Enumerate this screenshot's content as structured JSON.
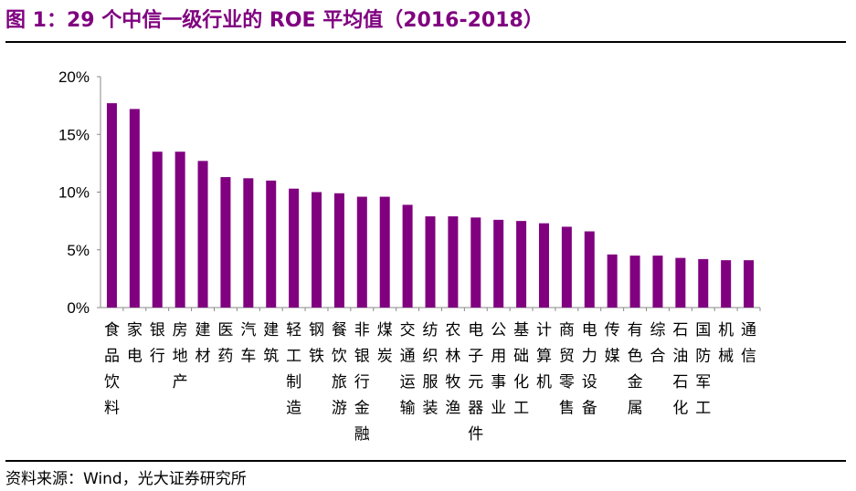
{
  "title": "图 1：29 个中信一级行业的 ROE 平均值（2016-2018）",
  "source": "资料来源：Wind，光大证券研究所",
  "colors": {
    "bar": "#800080",
    "title": "#800080"
  },
  "chart_data": {
    "type": "bar",
    "title": "图 1：29 个中信一级行业的 ROE 平均值（2016-2018）",
    "xlabel": "",
    "ylabel": "",
    "ylim": [
      0,
      20
    ],
    "yticks": [
      "0%",
      "5%",
      "10%",
      "15%",
      "20%"
    ],
    "grid": false,
    "categories": [
      "食品饮料",
      "家电",
      "银行",
      "房地产",
      "建材",
      "医药",
      "汽车",
      "建筑",
      "轻工制造",
      "钢铁",
      "餐饮旅游",
      "非银行金融",
      "煤炭",
      "交通运输",
      "纺织服装",
      "农林牧渔",
      "电子元器件",
      "公用事业",
      "基础化工",
      "计算机",
      "商贸零售",
      "电力设备",
      "传媒",
      "有色金属",
      "综合",
      "石油石化",
      "国防军工",
      "机械",
      "通信"
    ],
    "values": [
      17.7,
      17.2,
      13.5,
      13.5,
      12.7,
      11.3,
      11.2,
      11.0,
      10.3,
      10.0,
      9.9,
      9.6,
      9.6,
      8.9,
      7.9,
      7.9,
      7.8,
      7.6,
      7.5,
      7.3,
      7.0,
      6.6,
      4.6,
      4.5,
      4.5,
      4.3,
      4.2,
      4.1,
      4.1
    ]
  }
}
